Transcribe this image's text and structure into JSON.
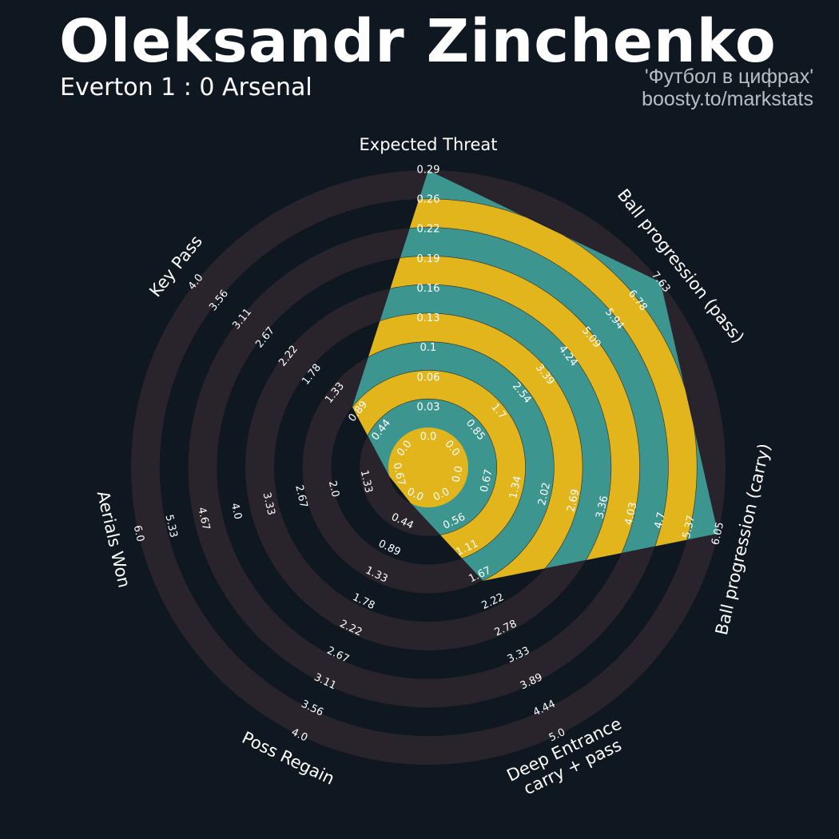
{
  "header": {
    "title": "Oleksandr Zinchenko",
    "subtitle": "Everton 1 : 0 Arsenal",
    "credit_line1": "'Футбол в цифрах'",
    "credit_line2": "boosty.to/markstats"
  },
  "colors": {
    "background": "#0f1720",
    "ring_band": "#29242b",
    "fill_teal": "#3c968f",
    "fill_gold": "#e2b51d",
    "text": "#ffffff",
    "credit": "#b9bec4"
  },
  "chart_data": {
    "type": "radar",
    "params": [
      {
        "label": "Expected Threat",
        "min": 0.0,
        "max": 0.29,
        "ticks": [
          "0.0",
          "0.03",
          "0.06",
          "0.1",
          "0.13",
          "0.16",
          "0.19",
          "0.22",
          "0.26",
          "0.29"
        ],
        "value": 0.29
      },
      {
        "label": "Ball progression (pass)",
        "min": 0.0,
        "max": 7.63,
        "ticks": [
          "0.0",
          "0.85",
          "1.7",
          "2.54",
          "3.39",
          "4.24",
          "5.09",
          "5.94",
          "6.78",
          "7.63"
        ],
        "value": 7.63
      },
      {
        "label": "Ball progression (carry)",
        "min": 0.0,
        "max": 6.05,
        "ticks": [
          "0.0",
          "0.67",
          "1.34",
          "2.02",
          "2.69",
          "3.36",
          "4.03",
          "4.7",
          "5.37",
          "6.05"
        ],
        "value": 6.05
      },
      {
        "label": "Deep Entrance\ncarry + pass",
        "min": 0.0,
        "max": 5.0,
        "ticks": [
          "0.0",
          "0.56",
          "1.11",
          "1.67",
          "2.22",
          "2.78",
          "3.33",
          "3.89",
          "4.44",
          "5.0"
        ],
        "value": 1.67
      },
      {
        "label": "Poss Regain",
        "min": 0.0,
        "max": 4.0,
        "ticks": [
          "0.0",
          "0.44",
          "0.89",
          "1.33",
          "1.78",
          "2.22",
          "2.67",
          "3.11",
          "3.56",
          "4.0"
        ],
        "value": 0.0
      },
      {
        "label": "Aerials Won",
        "min": 0.67,
        "max": 6.0,
        "ticks": [
          "0.67",
          "1.33",
          "2.0",
          "2.67",
          "3.33",
          "4.0",
          "4.67",
          "5.33",
          "6.0"
        ],
        "value": 0.67
      },
      {
        "label": "Key Pass",
        "min": 0.0,
        "max": 4.0,
        "ticks": [
          "0.0",
          "0.44",
          "0.89",
          "1.33",
          "1.78",
          "2.22",
          "2.67",
          "3.11",
          "3.56",
          "4.0"
        ],
        "value": 0.89
      }
    ]
  }
}
